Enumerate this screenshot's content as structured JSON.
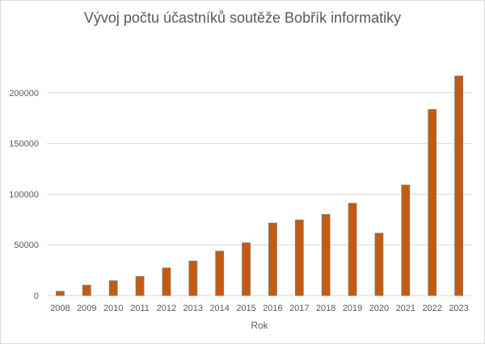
{
  "chart_data": {
    "type": "bar",
    "title": "Vývoj počtu účastníků soutěže Bobřík informatiky",
    "xlabel": "Rok",
    "ylabel": "",
    "categories": [
      "2008",
      "2009",
      "2010",
      "2011",
      "2012",
      "2013",
      "2014",
      "2015",
      "2016",
      "2017",
      "2018",
      "2019",
      "2020",
      "2021",
      "2022",
      "2023"
    ],
    "values": [
      4200,
      10200,
      14600,
      18800,
      27200,
      34000,
      43800,
      52000,
      71500,
      74500,
      80000,
      91000,
      61500,
      109000,
      183500,
      216500
    ],
    "ylim": [
      0,
      250000
    ],
    "yticks": [
      0,
      50000,
      100000,
      150000,
      200000
    ],
    "grid": true,
    "legend": "none",
    "bar_color": "#c55a11",
    "bar_edge_color": "#7f7f7f",
    "grid_color": "#d9d9d9"
  }
}
